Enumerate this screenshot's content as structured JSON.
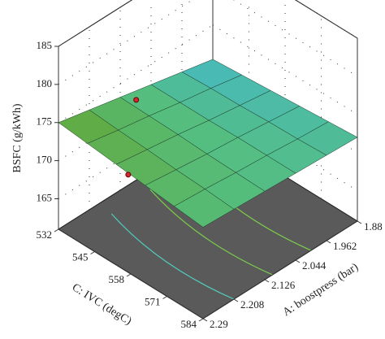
{
  "chart_data": {
    "type": "surface",
    "zlabel": "BSFC (g/kWh)",
    "xlabel": "C: IVC (degC)",
    "ylabel": "A: boostpress (bar)",
    "x": [
      532,
      542.4,
      552.8,
      563.2,
      573.6,
      584
    ],
    "y": [
      1.88,
      1.962,
      2.044,
      2.126,
      2.208,
      2.29
    ],
    "z": [
      [
        170.5,
        170.8,
        171.1,
        171.4,
        171.7,
        172.0
      ],
      [
        171.4,
        171.6,
        171.7,
        171.9,
        172.0,
        172.2
      ],
      [
        172.3,
        172.3,
        172.3,
        172.4,
        172.4,
        172.4
      ],
      [
        173.2,
        173.1,
        173.0,
        172.8,
        172.7,
        172.6
      ],
      [
        174.1,
        173.8,
        173.6,
        173.3,
        173.1,
        172.8
      ],
      [
        175.0,
        174.6,
        174.2,
        173.8,
        173.4,
        173.0
      ]
    ],
    "points": {
      "x": [
        537.2,
        547.6
      ],
      "y": [
        2.122,
        2.22
      ],
      "z": [
        173.9,
        169.5
      ],
      "color": "#d0282e"
    },
    "xlim": [
      532,
      584
    ],
    "xticks": [
      532,
      545,
      558,
      571,
      584
    ],
    "ylim": [
      1.88,
      2.29
    ],
    "yticks": [
      1.88,
      1.962,
      2.044,
      2.126,
      2.208,
      2.29
    ],
    "zlim": [
      161,
      185
    ],
    "zticks": [
      165,
      170,
      175,
      180,
      185
    ],
    "grid": true
  }
}
